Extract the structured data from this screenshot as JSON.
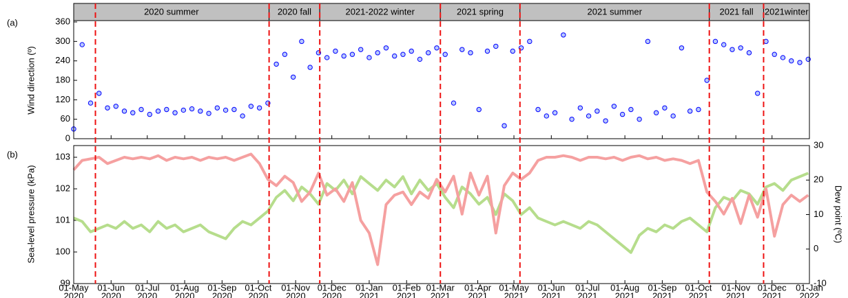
{
  "chart_data": [
    {
      "type": "scatter",
      "panel_label": "(a)",
      "ylabel": "Wind direction (º)",
      "xlim": [
        "2020-05-01",
        "2022-01-01"
      ],
      "ylim": [
        0,
        360
      ],
      "yticks": [
        0,
        60,
        120,
        180,
        240,
        300,
        360
      ],
      "color": "#0000ff",
      "fill": "#b8c8ff",
      "seasons": [
        {
          "label": "2020 summer",
          "start": "2020-05-01",
          "end": "2020-10-10"
        },
        {
          "label": "2020 fall",
          "start": "2020-10-10",
          "end": "2020-11-21"
        },
        {
          "label": "2021-2022 winter",
          "start": "2020-11-21",
          "end": "2021-03-01"
        },
        {
          "label": "2021 spring",
          "start": "2021-03-01",
          "end": "2021-05-06"
        },
        {
          "label": "2021 summer",
          "start": "2021-05-06",
          "end": "2021-10-10"
        },
        {
          "label": "2021 fall",
          "start": "2021-10-10",
          "end": "2021-11-24"
        },
        {
          "label": "2021winter",
          "start": "2021-11-24",
          "end": "2022-01-01"
        }
      ],
      "dividers": [
        "2020-05-19",
        "2020-10-10",
        "2020-11-21",
        "2021-03-01",
        "2021-05-06",
        "2021-10-10",
        "2021-11-24"
      ],
      "divider_color": "#ee1111",
      "x": [
        "2020-05-01",
        "2020-05-08",
        "2020-05-15",
        "2020-05-22",
        "2020-05-29",
        "2020-06-05",
        "2020-06-12",
        "2020-06-19",
        "2020-06-26",
        "2020-07-03",
        "2020-07-10",
        "2020-07-17",
        "2020-07-24",
        "2020-07-31",
        "2020-08-07",
        "2020-08-14",
        "2020-08-21",
        "2020-08-28",
        "2020-09-04",
        "2020-09-11",
        "2020-09-18",
        "2020-09-25",
        "2020-10-02",
        "2020-10-09",
        "2020-10-16",
        "2020-10-23",
        "2020-10-30",
        "2020-11-06",
        "2020-11-13",
        "2020-11-20",
        "2020-11-27",
        "2020-12-04",
        "2020-12-11",
        "2020-12-18",
        "2020-12-25",
        "2021-01-01",
        "2021-01-08",
        "2021-01-15",
        "2021-01-22",
        "2021-01-29",
        "2021-02-05",
        "2021-02-12",
        "2021-02-19",
        "2021-02-26",
        "2021-03-05",
        "2021-03-12",
        "2021-03-19",
        "2021-03-26",
        "2021-04-02",
        "2021-04-09",
        "2021-04-16",
        "2021-04-23",
        "2021-04-30",
        "2021-05-07",
        "2021-05-14",
        "2021-05-21",
        "2021-05-28",
        "2021-06-04",
        "2021-06-11",
        "2021-06-18",
        "2021-06-25",
        "2021-07-02",
        "2021-07-09",
        "2021-07-16",
        "2021-07-23",
        "2021-07-30",
        "2021-08-06",
        "2021-08-13",
        "2021-08-20",
        "2021-08-27",
        "2021-09-03",
        "2021-09-10",
        "2021-09-17",
        "2021-09-24",
        "2021-10-01",
        "2021-10-08",
        "2021-10-15",
        "2021-10-22",
        "2021-10-29",
        "2021-11-05",
        "2021-11-12",
        "2021-11-19",
        "2021-11-26",
        "2021-12-03",
        "2021-12-10",
        "2021-12-17",
        "2021-12-24",
        "2021-12-31"
      ],
      "values": [
        30,
        290,
        110,
        140,
        95,
        100,
        85,
        80,
        90,
        75,
        85,
        90,
        80,
        88,
        92,
        85,
        78,
        95,
        88,
        90,
        70,
        100,
        95,
        110,
        230,
        260,
        190,
        300,
        220,
        265,
        250,
        270,
        255,
        260,
        275,
        250,
        265,
        280,
        255,
        260,
        270,
        245,
        265,
        280,
        260,
        110,
        275,
        265,
        90,
        270,
        285,
        40,
        270,
        280,
        300,
        90,
        70,
        80,
        320,
        60,
        95,
        70,
        85,
        55,
        100,
        75,
        90,
        60,
        300,
        80,
        95,
        70,
        280,
        85,
        90,
        180,
        300,
        290,
        275,
        280,
        265,
        140,
        300,
        260,
        250,
        240,
        235,
        245
      ]
    },
    {
      "type": "line",
      "panel_label": "(b)",
      "ylabel": "Sea-level pressure (kPa)",
      "y2label": "Dew point (ºC)",
      "xlim": [
        "2020-05-01",
        "2022-01-01"
      ],
      "ylim": [
        99,
        103.37
      ],
      "yticks": [
        99,
        100,
        101,
        102,
        103
      ],
      "y2lim": [
        -10,
        30
      ],
      "y2ticks": [
        -10,
        0,
        10,
        20,
        30
      ],
      "xticks": [
        {
          "value": "2020-05-01",
          "label": [
            "01-May",
            "2020"
          ]
        },
        {
          "value": "2020-06-01",
          "label": [
            "01-Jun",
            "2020"
          ]
        },
        {
          "value": "2020-07-01",
          "label": [
            "01-Jul",
            "2020"
          ]
        },
        {
          "value": "2020-08-01",
          "label": [
            "01-Aug",
            "2020"
          ]
        },
        {
          "value": "2020-09-01",
          "label": [
            "01-Sep",
            "2020"
          ]
        },
        {
          "value": "2020-10-01",
          "label": [
            "01-Oct",
            "2020"
          ]
        },
        {
          "value": "2020-11-01",
          "label": [
            "01-Nov",
            "2020"
          ]
        },
        {
          "value": "2020-12-01",
          "label": [
            "01-Dec",
            "2020"
          ]
        },
        {
          "value": "2021-01-01",
          "label": [
            "01-Jan",
            "2021"
          ]
        },
        {
          "value": "2021-02-01",
          "label": [
            "01-Feb",
            "2021"
          ]
        },
        {
          "value": "2021-03-01",
          "label": [
            "01-Mar",
            "2021"
          ]
        },
        {
          "value": "2021-04-01",
          "label": [
            "01-Apr",
            "2021"
          ]
        },
        {
          "value": "2021-05-01",
          "label": [
            "01-May",
            "2021"
          ]
        },
        {
          "value": "2021-06-01",
          "label": [
            "01-Jun",
            "2021"
          ]
        },
        {
          "value": "2021-07-01",
          "label": [
            "01-Jul",
            "2021"
          ]
        },
        {
          "value": "2021-08-01",
          "label": [
            "01-Aug",
            "2021"
          ]
        },
        {
          "value": "2021-09-01",
          "label": [
            "01-Sep",
            "2021"
          ]
        },
        {
          "value": "2021-10-01",
          "label": [
            "01-Oct",
            "2021"
          ]
        },
        {
          "value": "2021-11-01",
          "label": [
            "01-Nov",
            "2021"
          ]
        },
        {
          "value": "2021-12-01",
          "label": [
            "01-Dec",
            "2021"
          ]
        },
        {
          "value": "2022-01-01",
          "label": [
            "01-Jan",
            "2022"
          ]
        }
      ],
      "x": [
        "2020-05-01",
        "2020-05-08",
        "2020-05-15",
        "2020-05-22",
        "2020-05-29",
        "2020-06-05",
        "2020-06-12",
        "2020-06-19",
        "2020-06-26",
        "2020-07-03",
        "2020-07-10",
        "2020-07-17",
        "2020-07-24",
        "2020-07-31",
        "2020-08-07",
        "2020-08-14",
        "2020-08-21",
        "2020-08-28",
        "2020-09-04",
        "2020-09-11",
        "2020-09-18",
        "2020-09-25",
        "2020-10-02",
        "2020-10-09",
        "2020-10-16",
        "2020-10-23",
        "2020-10-30",
        "2020-11-06",
        "2020-11-13",
        "2020-11-20",
        "2020-11-27",
        "2020-12-04",
        "2020-12-11",
        "2020-12-18",
        "2020-12-25",
        "2021-01-01",
        "2021-01-08",
        "2021-01-15",
        "2021-01-22",
        "2021-01-29",
        "2021-02-05",
        "2021-02-12",
        "2021-02-19",
        "2021-02-26",
        "2021-03-05",
        "2021-03-12",
        "2021-03-19",
        "2021-03-26",
        "2021-04-02",
        "2021-04-09",
        "2021-04-16",
        "2021-04-23",
        "2021-04-30",
        "2021-05-07",
        "2021-05-14",
        "2021-05-21",
        "2021-05-28",
        "2021-06-04",
        "2021-06-11",
        "2021-06-18",
        "2021-06-25",
        "2021-07-02",
        "2021-07-09",
        "2021-07-16",
        "2021-07-23",
        "2021-07-30",
        "2021-08-06",
        "2021-08-13",
        "2021-08-20",
        "2021-08-27",
        "2021-09-03",
        "2021-09-10",
        "2021-09-17",
        "2021-09-24",
        "2021-10-01",
        "2021-10-08",
        "2021-10-15",
        "2021-10-22",
        "2021-10-29",
        "2021-11-05",
        "2021-11-12",
        "2021-11-19",
        "2021-11-26",
        "2021-12-03",
        "2021-12-10",
        "2021-12-17",
        "2021-12-24",
        "2021-12-31"
      ],
      "series": [
        {
          "color": "#b6dd8c",
          "axis": "y2",
          "values": [
            9,
            8,
            5,
            6,
            7,
            6,
            8,
            6,
            7,
            5,
            8,
            6,
            7,
            5,
            6,
            7,
            5,
            4,
            3,
            6,
            8,
            7,
            9,
            11,
            15,
            17,
            14,
            18,
            16,
            13,
            19,
            17,
            20,
            16,
            21,
            19,
            17,
            20,
            18,
            21,
            16,
            20,
            17,
            19,
            15,
            12,
            18,
            16,
            13,
            15,
            10,
            16,
            14,
            10,
            12,
            9,
            8,
            7,
            8,
            7,
            6,
            8,
            7,
            5,
            3,
            1,
            -1,
            4,
            6,
            5,
            7,
            6,
            8,
            9,
            7,
            5,
            12,
            15,
            14,
            17,
            16,
            13,
            18,
            19,
            17,
            20,
            21,
            22
          ]
        },
        {
          "color": "#f5a0a0",
          "axis": "y",
          "values": [
            102.6,
            102.9,
            102.95,
            103.0,
            102.8,
            102.9,
            103.0,
            102.95,
            103.0,
            102.95,
            103.05,
            102.9,
            103.0,
            102.95,
            103.0,
            102.9,
            103.0,
            102.95,
            103.0,
            102.9,
            103.0,
            103.1,
            102.8,
            102.3,
            102.1,
            102.4,
            102.2,
            101.6,
            101.9,
            102.5,
            101.8,
            102.0,
            101.6,
            102.2,
            101.0,
            100.6,
            99.6,
            101.5,
            101.8,
            101.9,
            101.5,
            101.9,
            101.7,
            102.3,
            101.9,
            102.4,
            101.2,
            102.5,
            101.8,
            102.4,
            100.6,
            102.1,
            102.5,
            102.3,
            102.5,
            102.9,
            103.0,
            103.0,
            103.05,
            103.0,
            102.9,
            103.0,
            103.0,
            102.95,
            103.0,
            102.9,
            103.0,
            103.05,
            102.95,
            103.0,
            102.9,
            102.95,
            102.9,
            102.8,
            102.9,
            101.9,
            101.6,
            101.2,
            101.7,
            100.9,
            101.8,
            101.1,
            102.0,
            100.5,
            101.5,
            101.8,
            101.6,
            101.8
          ]
        }
      ]
    }
  ]
}
